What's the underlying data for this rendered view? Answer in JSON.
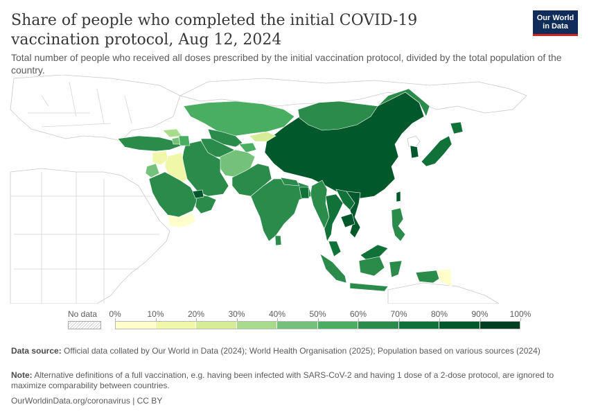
{
  "header": {
    "title": "Share of people who completed the initial COVID-19 vaccination protocol, Aug 12, 2024",
    "subtitle": "Total number of people who received all doses prescribed by the initial vaccination protocol, divided by the total population of the country.",
    "logo_line1": "Our World",
    "logo_line2": "in Data"
  },
  "legend": {
    "no_data_label": "No data",
    "ticks": [
      "0%",
      "10%",
      "20%",
      "30%",
      "40%",
      "50%",
      "60%",
      "70%",
      "80%",
      "90%",
      "100%"
    ],
    "colors": [
      "#ffffcc",
      "#f0f7a8",
      "#d6ec96",
      "#a8db8a",
      "#74c27a",
      "#49ad62",
      "#2a8b4b",
      "#107238",
      "#00582b",
      "#003f1f"
    ]
  },
  "chart_data": {
    "type": "choropleth",
    "region": "Asia",
    "unit": "%",
    "bins": [
      0,
      10,
      20,
      30,
      40,
      50,
      60,
      70,
      80,
      90,
      100
    ],
    "regions": [
      {
        "id": "china",
        "bin": 8
      },
      {
        "id": "mongolia",
        "bin": 6
      },
      {
        "id": "russia-east",
        "bin": 6
      },
      {
        "id": "kazakhstan",
        "bin": 5
      },
      {
        "id": "uzbekistan",
        "bin": 6
      },
      {
        "id": "turkmenistan",
        "bin": 6
      },
      {
        "id": "kyrgyzstan",
        "bin": 2
      },
      {
        "id": "tajikistan",
        "bin": 5
      },
      {
        "id": "afghanistan",
        "bin": 4
      },
      {
        "id": "iran",
        "bin": 6
      },
      {
        "id": "iraq",
        "bin": 1
      },
      {
        "id": "syria",
        "bin": 1
      },
      {
        "id": "turkey",
        "bin": 6
      },
      {
        "id": "georgia",
        "bin": 3
      },
      {
        "id": "armenia",
        "bin": 4
      },
      {
        "id": "azerbaijan",
        "bin": 5
      },
      {
        "id": "saudi-arabia",
        "bin": 6
      },
      {
        "id": "yemen",
        "bin": 0
      },
      {
        "id": "oman",
        "bin": 6
      },
      {
        "id": "uae",
        "bin": 8
      },
      {
        "id": "jordan",
        "bin": 4
      },
      {
        "id": "pakistan",
        "bin": 6
      },
      {
        "id": "india",
        "bin": 6
      },
      {
        "id": "nepal",
        "bin": 6
      },
      {
        "id": "bangladesh",
        "bin": 7
      },
      {
        "id": "sri-lanka",
        "bin": 6
      },
      {
        "id": "myanmar",
        "bin": 6
      },
      {
        "id": "thailand",
        "bin": 7
      },
      {
        "id": "laos",
        "bin": 7
      },
      {
        "id": "vietnam",
        "bin": 8
      },
      {
        "id": "cambodia",
        "bin": 8
      },
      {
        "id": "malaysia",
        "bin": 7
      },
      {
        "id": "indonesia",
        "bin": 6
      },
      {
        "id": "philippines",
        "bin": 6
      },
      {
        "id": "papua-new-guinea",
        "bin": 0
      },
      {
        "id": "japan",
        "bin": 7
      },
      {
        "id": "south-korea",
        "bin": 8
      },
      {
        "id": "north-korea",
        "bin": -1
      },
      {
        "id": "taiwan",
        "bin": 8
      }
    ]
  },
  "footer": {
    "source_label": "Data source:",
    "source_text": " Official data collated by Our World in Data (2024); World Health Organisation (2025); Population based on various sources (2024)",
    "note_label": "Note:",
    "note_text": " Alternative definitions of a full vaccination, e.g. having been infected with SARS-CoV-2 and having 1 dose of a 2-dose protocol, are ignored to maximize comparability between countries.",
    "link_text": "OurWorldinData.org/coronavirus",
    "license_text": " | CC BY"
  }
}
